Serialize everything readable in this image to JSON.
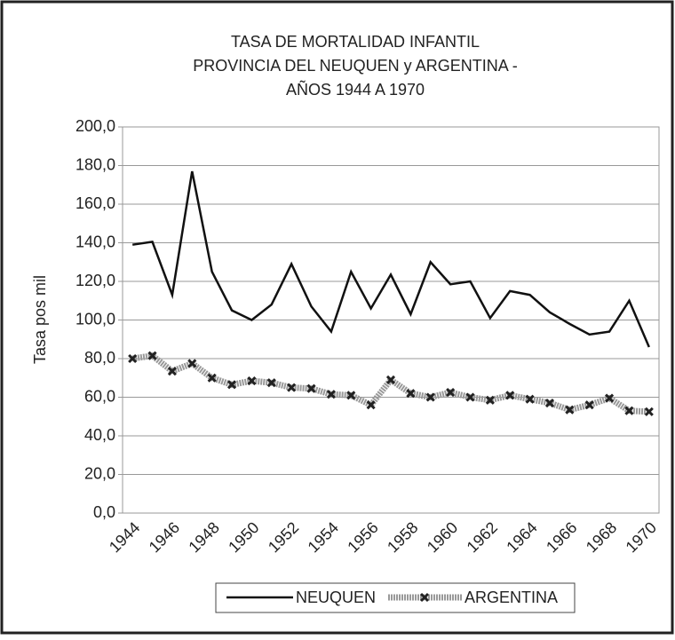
{
  "chart_data": {
    "type": "line",
    "title": [
      "TASA DE MORTALIDAD INFANTIL",
      "PROVINCIA DEL NEUQUEN y ARGENTINA -",
      "AÑOS 1944 A 1970"
    ],
    "y_label": "Tasa pos mil",
    "categories": [
      "1944",
      null,
      "1946",
      null,
      "1948",
      null,
      "1950",
      null,
      "1952",
      null,
      "1954",
      null,
      "1956",
      null,
      "1958",
      null,
      "1960",
      null,
      "1962",
      null,
      "1964",
      null,
      "1966",
      null,
      "1968",
      null,
      "1970"
    ],
    "series": [
      {
        "name": "NEUQUEN",
        "color": "#111111",
        "values": [
          139,
          140.5,
          113,
          177,
          125,
          105,
          100,
          108,
          129,
          107,
          94,
          125,
          106,
          123.5,
          103,
          130,
          118.5,
          120,
          101,
          115,
          113,
          104,
          98,
          92.5,
          94,
          110,
          86
        ]
      },
      {
        "name": "ARGENTINA",
        "color": "#999999",
        "values": [
          80,
          81.5,
          73.5,
          77.5,
          70,
          66.5,
          68.5,
          67.5,
          65,
          64.5,
          61.5,
          61,
          56,
          69,
          62,
          60,
          62.5,
          60,
          58.5,
          61,
          59,
          57,
          53.5,
          56,
          59.5,
          53,
          52.5
        ]
      }
    ],
    "ylim": [
      0,
      200
    ],
    "yticks": [
      {
        "value": 0,
        "label": "0,0"
      },
      {
        "value": 20,
        "label": "20,0"
      },
      {
        "value": 40,
        "label": "40,0"
      },
      {
        "value": 60,
        "label": "60,0"
      },
      {
        "value": 80,
        "label": "80,0"
      },
      {
        "value": 100,
        "label": "100,0"
      },
      {
        "value": 120,
        "label": "120,0"
      },
      {
        "value": 140,
        "label": "140,0"
      },
      {
        "value": 160,
        "label": "160,0"
      },
      {
        "value": 180,
        "label": "180,0"
      },
      {
        "value": 200,
        "label": "200,0"
      }
    ],
    "grid": true,
    "legend": "bottom"
  }
}
